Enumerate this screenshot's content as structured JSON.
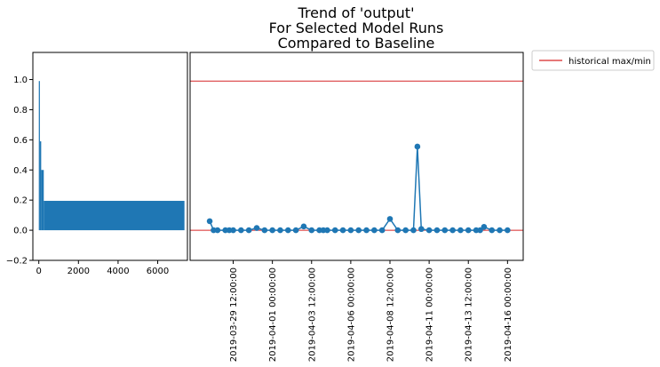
{
  "chart_data": [
    {
      "type": "bar",
      "panel": "left",
      "xlim": [
        -300,
        7500
      ],
      "ylim": [
        -0.2,
        1.18
      ],
      "xticks": [
        "0",
        "2000",
        "4000",
        "6000"
      ],
      "xtick_values": [
        0,
        2000,
        4000,
        6000
      ],
      "yticks": [
        "−0.2",
        "0.0",
        "0.2",
        "0.4",
        "0.6",
        "0.8",
        "1.0"
      ],
      "ytick_values": [
        -0.2,
        0,
        0.2,
        0.4,
        0.6,
        0.8,
        1.0
      ],
      "bars": [
        {
          "x0": 0,
          "x1": 55,
          "value": 0.99
        },
        {
          "x0": 55,
          "x1": 120,
          "value": 0.59
        },
        {
          "x0": 120,
          "x1": 250,
          "value": 0.4
        },
        {
          "x0": 250,
          "x1": 7350,
          "value": 0.195
        }
      ],
      "color": "#1f77b4"
    },
    {
      "type": "line",
      "panel": "right",
      "title": [
        "Trend of 'output'",
        "For Selected Model Runs",
        "Compared to Baseline"
      ],
      "xlim": [
        "2019-03-26T18:00:00",
        "2019-04-17T00:00:00"
      ],
      "ylim": [
        -0.2,
        1.18
      ],
      "xticks": [
        "2019-03-29 12:00:00",
        "2019-04-01 00:00:00",
        "2019-04-03 12:00:00",
        "2019-04-06 00:00:00",
        "2019-04-08 12:00:00",
        "2019-04-11 00:00:00",
        "2019-04-13 12:00:00",
        "2019-04-16 00:00:00"
      ],
      "xtick_values": [
        "2019-03-29T12:00:00",
        "2019-04-01T00:00:00",
        "2019-04-03T12:00:00",
        "2019-04-06T00:00:00",
        "2019-04-08T12:00:00",
        "2019-04-11T00:00:00",
        "2019-04-13T12:00:00",
        "2019-04-16T00:00:00"
      ],
      "series": [
        {
          "color": "#1f77b4",
          "points": [
            [
              "2019-03-28T00:00:00",
              0.06
            ],
            [
              "2019-03-28T06:00:00",
              0.0
            ],
            [
              "2019-03-28T12:00:00",
              0.0
            ],
            [
              "2019-03-29T00:00:00",
              0.0
            ],
            [
              "2019-03-29T06:00:00",
              0.0
            ],
            [
              "2019-03-29T12:00:00",
              0.0
            ],
            [
              "2019-03-30T00:00:00",
              0.0
            ],
            [
              "2019-03-30T12:00:00",
              0.0
            ],
            [
              "2019-03-31T00:00:00",
              0.015
            ],
            [
              "2019-03-31T12:00:00",
              0.0
            ],
            [
              "2019-04-01T00:00:00",
              0.0
            ],
            [
              "2019-04-01T12:00:00",
              0.0
            ],
            [
              "2019-04-02T00:00:00",
              0.0
            ],
            [
              "2019-04-02T12:00:00",
              0.0
            ],
            [
              "2019-04-03T00:00:00",
              0.025
            ],
            [
              "2019-04-03T12:00:00",
              0.0
            ],
            [
              "2019-04-04T00:00:00",
              0.0
            ],
            [
              "2019-04-04T06:00:00",
              0.0
            ],
            [
              "2019-04-04T12:00:00",
              0.0
            ],
            [
              "2019-04-05T00:00:00",
              0.0
            ],
            [
              "2019-04-05T12:00:00",
              0.0
            ],
            [
              "2019-04-06T00:00:00",
              0.0
            ],
            [
              "2019-04-06T12:00:00",
              0.0
            ],
            [
              "2019-04-07T00:00:00",
              0.0
            ],
            [
              "2019-04-07T12:00:00",
              0.0
            ],
            [
              "2019-04-08T00:00:00",
              0.0
            ],
            [
              "2019-04-08T12:00:00",
              0.075
            ],
            [
              "2019-04-09T00:00:00",
              0.0
            ],
            [
              "2019-04-09T12:00:00",
              0.0
            ],
            [
              "2019-04-10T00:00:00",
              0.0
            ],
            [
              "2019-04-10T06:00:00",
              0.555
            ],
            [
              "2019-04-10T12:00:00",
              0.008
            ],
            [
              "2019-04-11T00:00:00",
              0.0
            ],
            [
              "2019-04-11T12:00:00",
              0.0
            ],
            [
              "2019-04-12T00:00:00",
              0.0
            ],
            [
              "2019-04-12T12:00:00",
              0.0
            ],
            [
              "2019-04-13T00:00:00",
              0.0
            ],
            [
              "2019-04-13T12:00:00",
              0.0
            ],
            [
              "2019-04-14T00:00:00",
              0.0
            ],
            [
              "2019-04-14T06:00:00",
              0.0
            ],
            [
              "2019-04-14T12:00:00",
              0.022
            ],
            [
              "2019-04-15T00:00:00",
              0.0
            ],
            [
              "2019-04-15T12:00:00",
              0.0
            ],
            [
              "2019-04-16T00:00:00",
              0.0
            ]
          ]
        }
      ],
      "hlines": [
        {
          "y": 0.99,
          "color": "#d62728"
        },
        {
          "y": 0.0,
          "color": "#d62728"
        }
      ],
      "legend": {
        "placement": "outside-upper-right",
        "entries": [
          {
            "label": "historical max/min",
            "color": "#d62728"
          }
        ]
      }
    }
  ]
}
